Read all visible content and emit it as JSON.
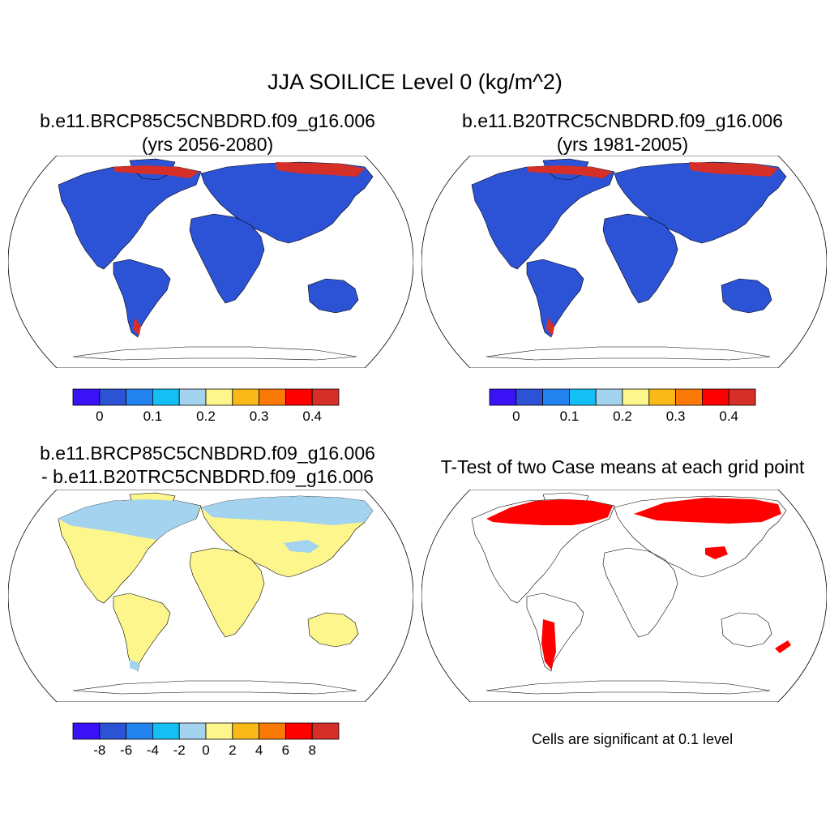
{
  "figure": {
    "title": "JJA SOILICE Level 0 (kg/m^2)"
  },
  "panels": [
    {
      "id": "case1",
      "title_line1": "b.e11.BRCP85C5CNBDRD.f09_g16.006",
      "title_line2": "(yrs 2056-2080)",
      "fill": "#2c52d6",
      "high_lat_color": "#d62f27"
    },
    {
      "id": "case2",
      "title_line1": "b.e11.B20TRC5CNBDRD.f09_g16.006",
      "title_line2": "(yrs 1981-2005)",
      "fill": "#2c52d6",
      "high_lat_color": "#d62f27"
    },
    {
      "id": "diff",
      "title_line1": "b.e11.BRCP85C5CNBDRD.f09_g16.006",
      "title_line2": "- b.e11.B20TRC5CNBDRD.f09_g16.006",
      "fill": "#fdf68c",
      "high_lat_color": "#a3d3ee"
    },
    {
      "id": "ttest",
      "title_line1": "T-Test of two Case means at each grid point",
      "title_line2": "",
      "fill": "none",
      "high_lat_color": "#ff0000"
    }
  ],
  "colorbars": {
    "abs": {
      "colors": [
        "#3a12f5",
        "#2c52d6",
        "#2384ef",
        "#14bff4",
        "#a3d3ee",
        "#fdf68c",
        "#fbb917",
        "#fb7a07",
        "#fe0000",
        "#d62f27"
      ],
      "labels": [
        "0",
        "0.1",
        "0.2",
        "0.3",
        "0.4"
      ]
    },
    "diff": {
      "colors": [
        "#3a12f5",
        "#2c52d6",
        "#2384ef",
        "#14bff4",
        "#a3d3ee",
        "#fdf68c",
        "#fbb917",
        "#fb7a07",
        "#fe0000",
        "#d62f27"
      ],
      "labels": [
        "-8",
        "-6",
        "-4",
        "-2",
        "0",
        "2",
        "4",
        "6",
        "8"
      ]
    }
  },
  "note": "Cells are significant at 0.1 level"
}
